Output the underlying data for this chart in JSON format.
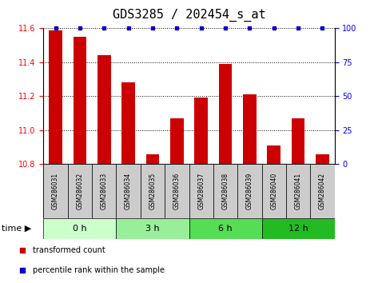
{
  "title": "GDS3285 / 202454_s_at",
  "samples": [
    "GSM286031",
    "GSM286032",
    "GSM286033",
    "GSM286034",
    "GSM286035",
    "GSM286036",
    "GSM286037",
    "GSM286038",
    "GSM286039",
    "GSM286040",
    "GSM286041",
    "GSM286042"
  ],
  "transformed_count": [
    11.59,
    11.55,
    11.44,
    11.28,
    10.86,
    11.07,
    11.19,
    11.39,
    11.21,
    10.91,
    11.07,
    10.86
  ],
  "percentile_rank": [
    100,
    100,
    100,
    100,
    100,
    100,
    100,
    100,
    100,
    100,
    100,
    100
  ],
  "group_colors": [
    "#ccffcc",
    "#99ee99",
    "#55dd55",
    "#22bb22"
  ],
  "groups": [
    {
      "label": "0 h",
      "start": 0,
      "end": 3
    },
    {
      "label": "3 h",
      "start": 3,
      "end": 6
    },
    {
      "label": "6 h",
      "start": 6,
      "end": 9
    },
    {
      "label": "12 h",
      "start": 9,
      "end": 12
    }
  ],
  "bar_color": "#cc0000",
  "scatter_color": "#0000cc",
  "ylim_left": [
    10.8,
    11.6
  ],
  "yticks_left": [
    10.8,
    11.0,
    11.2,
    11.4,
    11.6
  ],
  "ylim_right": [
    0,
    100
  ],
  "yticks_right": [
    0,
    25,
    50,
    75,
    100
  ],
  "bg_sample": "#cccccc",
  "title_fontsize": 11,
  "tick_fontsize": 7,
  "sample_fontsize": 5.5,
  "group_fontsize": 8,
  "legend_fontsize": 7,
  "time_fontsize": 8
}
